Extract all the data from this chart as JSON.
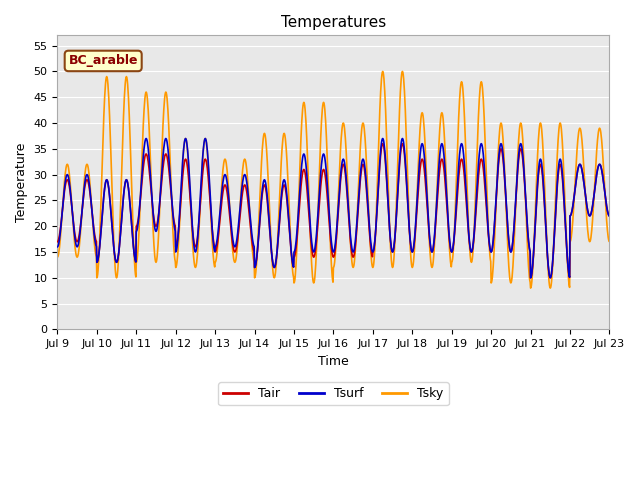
{
  "title": "Temperatures",
  "xlabel": "Time",
  "ylabel": "Temperature",
  "ylim": [
    0,
    57
  ],
  "yticks": [
    0,
    5,
    10,
    15,
    20,
    25,
    30,
    35,
    40,
    45,
    50,
    55
  ],
  "x_start_day": 9,
  "x_end_day": 23,
  "x_tick_days": [
    9,
    10,
    11,
    12,
    13,
    14,
    15,
    16,
    17,
    18,
    19,
    20,
    21,
    22,
    23
  ],
  "x_tick_labels": [
    "Jul 9",
    "Jul 10",
    "Jul 11",
    "Jul 12",
    "Jul 13",
    "Jul 14",
    "Jul 15",
    "Jul 16",
    "Jul 17",
    "Jul 18",
    "Jul 19",
    "Jul 20",
    "Jul 21",
    "Jul 22",
    "Jul 23"
  ],
  "annotation_text": "BC_arable",
  "color_Tair": "#CC0000",
  "color_Tsurf": "#0000CC",
  "color_Tsky": "#FF9900",
  "line_width": 1.2,
  "fig_bg_color": "#FFFFFF",
  "plot_bg_color": "#E8E8E8",
  "grid_color": "#FFFFFF",
  "legend_labels": [
    "Tair",
    "Tsurf",
    "Tsky"
  ],
  "title_fontsize": 11,
  "label_fontsize": 9,
  "tick_fontsize": 8,
  "tsky_peaks": [
    32,
    49,
    46,
    37,
    33,
    38,
    44,
    40,
    50,
    42,
    48,
    40,
    40,
    39,
    32,
    49,
    46,
    37,
    33,
    38,
    44,
    40,
    50,
    42,
    48,
    40,
    40,
    39
  ],
  "tsky_troughs": [
    14,
    10,
    13,
    12,
    13,
    10,
    9,
    12,
    12,
    12,
    13,
    9,
    8,
    17,
    14,
    10,
    13,
    12,
    13,
    10,
    9,
    12,
    12,
    12,
    13,
    9,
    8,
    17
  ],
  "tair_peaks": [
    29,
    29,
    34,
    33,
    28,
    28,
    31,
    32,
    36,
    33,
    33,
    35,
    32,
    32,
    29,
    29,
    34,
    33,
    28,
    28,
    31,
    32,
    36,
    33,
    33,
    35,
    32,
    32
  ],
  "tair_troughs": [
    17,
    13,
    20,
    16,
    15,
    12,
    14,
    14,
    15,
    15,
    15,
    15,
    10,
    22,
    17,
    13,
    20,
    16,
    15,
    12,
    14,
    14,
    15,
    15,
    15,
    15,
    10,
    22
  ],
  "tsurf_peaks": [
    30,
    29,
    37,
    37,
    30,
    29,
    34,
    33,
    37,
    36,
    36,
    36,
    33,
    32,
    30,
    29,
    37,
    37,
    30,
    29,
    34,
    33,
    37,
    36,
    36,
    36,
    33,
    32
  ],
  "tsurf_troughs": [
    16,
    13,
    19,
    15,
    16,
    12,
    15,
    15,
    15,
    15,
    15,
    15,
    10,
    22,
    16,
    13,
    19,
    15,
    16,
    12,
    15,
    15,
    15,
    15,
    15,
    15,
    10,
    22
  ],
  "cycles_per_day": 2,
  "points_per_cycle": 48,
  "n_days": 14
}
